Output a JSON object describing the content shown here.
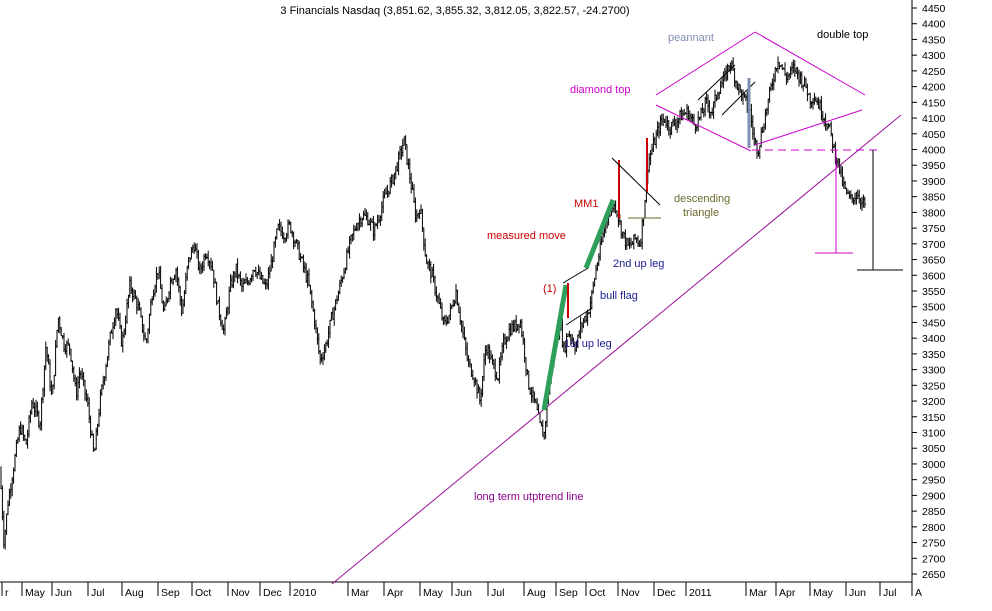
{
  "chart_data": {
    "type": "candlestick",
    "title": "3 Financials Nasdaq (3,851.62, 3,855.32, 3,812.05, 3,822.57, -24.2700)",
    "ylim": [
      2620,
      4480
    ],
    "y_ticks": [
      2650,
      2700,
      2750,
      2800,
      2850,
      2900,
      2950,
      3000,
      3050,
      3100,
      3150,
      3200,
      3250,
      3300,
      3350,
      3400,
      3450,
      3500,
      3550,
      3600,
      3650,
      3700,
      3750,
      3800,
      3850,
      3900,
      3950,
      4000,
      4050,
      4100,
      4150,
      4200,
      4250,
      4300,
      4350,
      4400,
      4450
    ],
    "x_ticks": [
      "r",
      "May",
      "Jun",
      "Jul",
      "Aug",
      "Sep",
      "Oct",
      "Nov",
      "Dec",
      "2010",
      "Mar",
      "Apr",
      "May",
      "Jun",
      "Jul",
      "Aug",
      "Sep",
      "Oct",
      "Nov",
      "Dec",
      "2011",
      "Mar",
      "Apr",
      "May",
      "Jun",
      "Jul",
      "A"
    ],
    "price_path": [
      [
        0,
        2980
      ],
      [
        4,
        2750
      ],
      [
        8,
        2880
      ],
      [
        14,
        3000
      ],
      [
        20,
        3120
      ],
      [
        26,
        3060
      ],
      [
        32,
        3200
      ],
      [
        40,
        3130
      ],
      [
        46,
        3380
      ],
      [
        52,
        3200
      ],
      [
        58,
        3470
      ],
      [
        64,
        3380
      ],
      [
        70,
        3370
      ],
      [
        76,
        3220
      ],
      [
        80,
        3300
      ],
      [
        88,
        3180
      ],
      [
        94,
        3020
      ],
      [
        100,
        3200
      ],
      [
        104,
        3280
      ],
      [
        110,
        3400
      ],
      [
        116,
        3500
      ],
      [
        122,
        3380
      ],
      [
        130,
        3570
      ],
      [
        138,
        3500
      ],
      [
        146,
        3380
      ],
      [
        152,
        3540
      ],
      [
        158,
        3620
      ],
      [
        164,
        3470
      ],
      [
        170,
        3580
      ],
      [
        176,
        3620
      ],
      [
        182,
        3480
      ],
      [
        188,
        3640
      ],
      [
        194,
        3700
      ],
      [
        200,
        3610
      ],
      [
        206,
        3680
      ],
      [
        212,
        3630
      ],
      [
        218,
        3500
      ],
      [
        224,
        3420
      ],
      [
        230,
        3560
      ],
      [
        236,
        3620
      ],
      [
        242,
        3560
      ],
      [
        248,
        3580
      ],
      [
        254,
        3630
      ],
      [
        260,
        3590
      ],
      [
        266,
        3560
      ],
      [
        272,
        3650
      ],
      [
        278,
        3750
      ],
      [
        284,
        3730
      ],
      [
        290,
        3760
      ],
      [
        296,
        3700
      ],
      [
        302,
        3640
      ],
      [
        308,
        3580
      ],
      [
        314,
        3470
      ],
      [
        320,
        3330
      ],
      [
        326,
        3380
      ],
      [
        332,
        3470
      ],
      [
        338,
        3540
      ],
      [
        344,
        3620
      ],
      [
        350,
        3700
      ],
      [
        356,
        3760
      ],
      [
        362,
        3790
      ],
      [
        368,
        3780
      ],
      [
        374,
        3740
      ],
      [
        380,
        3800
      ],
      [
        386,
        3860
      ],
      [
        392,
        3900
      ],
      [
        398,
        3960
      ],
      [
        404,
        4030
      ],
      [
        408,
        3950
      ],
      [
        412,
        3870
      ],
      [
        416,
        3780
      ],
      [
        420,
        3820
      ],
      [
        426,
        3650
      ],
      [
        432,
        3600
      ],
      [
        438,
        3520
      ],
      [
        444,
        3440
      ],
      [
        450,
        3480
      ],
      [
        456,
        3550
      ],
      [
        462,
        3430
      ],
      [
        468,
        3320
      ],
      [
        474,
        3280
      ],
      [
        480,
        3200
      ],
      [
        486,
        3380
      ],
      [
        492,
        3320
      ],
      [
        498,
        3280
      ],
      [
        504,
        3390
      ],
      [
        510,
        3430
      ],
      [
        516,
        3440
      ],
      [
        520,
        3460
      ],
      [
        524,
        3370
      ],
      [
        528,
        3260
      ],
      [
        532,
        3220
      ],
      [
        536,
        3180
      ],
      [
        540,
        3120
      ],
      [
        544,
        3090
      ],
      [
        548,
        3220
      ],
      [
        552,
        3320
      ],
      [
        556,
        3400
      ],
      [
        560,
        3450
      ],
      [
        564,
        3360
      ],
      [
        568,
        3420
      ],
      [
        572,
        3400
      ],
      [
        576,
        3370
      ],
      [
        580,
        3430
      ],
      [
        584,
        3460
      ],
      [
        588,
        3480
      ],
      [
        592,
        3540
      ],
      [
        596,
        3620
      ],
      [
        600,
        3680
      ],
      [
        604,
        3740
      ],
      [
        608,
        3800
      ],
      [
        612,
        3820
      ],
      [
        616,
        3820
      ],
      [
        620,
        3760
      ],
      [
        624,
        3720
      ],
      [
        628,
        3690
      ],
      [
        632,
        3700
      ],
      [
        636,
        3720
      ],
      [
        640,
        3700
      ],
      [
        644,
        3810
      ],
      [
        648,
        3960
      ],
      [
        652,
        4000
      ],
      [
        656,
        4040
      ],
      [
        660,
        4080
      ],
      [
        664,
        4100
      ],
      [
        670,
        4070
      ],
      [
        676,
        4090
      ],
      [
        682,
        4110
      ],
      [
        688,
        4120
      ],
      [
        694,
        4080
      ],
      [
        700,
        4100
      ],
      [
        706,
        4150
      ],
      [
        712,
        4120
      ],
      [
        718,
        4190
      ],
      [
        724,
        4220
      ],
      [
        730,
        4280
      ],
      [
        734,
        4240
      ],
      [
        738,
        4200
      ],
      [
        742,
        4170
      ],
      [
        746,
        4150
      ],
      [
        750,
        4120
      ],
      [
        754,
        4030
      ],
      [
        758,
        4000
      ],
      [
        762,
        4060
      ],
      [
        766,
        4120
      ],
      [
        770,
        4180
      ],
      [
        774,
        4240
      ],
      [
        778,
        4290
      ],
      [
        782,
        4260
      ],
      [
        786,
        4230
      ],
      [
        790,
        4240
      ],
      [
        794,
        4260
      ],
      [
        798,
        4240
      ],
      [
        802,
        4220
      ],
      [
        806,
        4200
      ],
      [
        810,
        4160
      ],
      [
        814,
        4170
      ],
      [
        818,
        4150
      ],
      [
        822,
        4120
      ],
      [
        826,
        4090
      ],
      [
        830,
        4060
      ],
      [
        834,
        4000
      ],
      [
        838,
        3960
      ],
      [
        842,
        3900
      ],
      [
        846,
        3860
      ],
      [
        850,
        3840
      ],
      [
        854,
        3850
      ],
      [
        858,
        3860
      ],
      [
        862,
        3830
      ],
      [
        866,
        3822
      ]
    ],
    "annotations": [
      {
        "key": "peannant",
        "text": "peannant",
        "color": "#7f8fb3"
      },
      {
        "key": "double_top",
        "text": "double top",
        "color": "#000000"
      },
      {
        "key": "diamond_top",
        "text": "diamond top",
        "color": "#cc00cc"
      },
      {
        "key": "mm1",
        "text": "MM1",
        "color": "#cc0000"
      },
      {
        "key": "descending",
        "text": "descending",
        "color": "#6b6b2e"
      },
      {
        "key": "triangle",
        "text": "triangle",
        "color": "#6b6b2e"
      },
      {
        "key": "measured_move",
        "text": "measured move",
        "color": "#cc0000"
      },
      {
        "key": "second_leg",
        "text": "2nd up leg",
        "color": "#1a1a8c"
      },
      {
        "key": "flag_num",
        "text": "(1)",
        "color": "#cc0000"
      },
      {
        "key": "bull_flag",
        "text": "bull flag",
        "color": "#1a1a8c"
      },
      {
        "key": "first_leg",
        "text": "1st up leg",
        "color": "#1a1a8c"
      },
      {
        "key": "trendline",
        "text": "long term utptrend line",
        "color": "#8b008b"
      }
    ],
    "colors": {
      "bars": "#000000",
      "trend": "#cc00cc",
      "leg": "#2e9e5b",
      "pennant_pole": "#7f8fb3",
      "measured": "#cc0000"
    }
  }
}
